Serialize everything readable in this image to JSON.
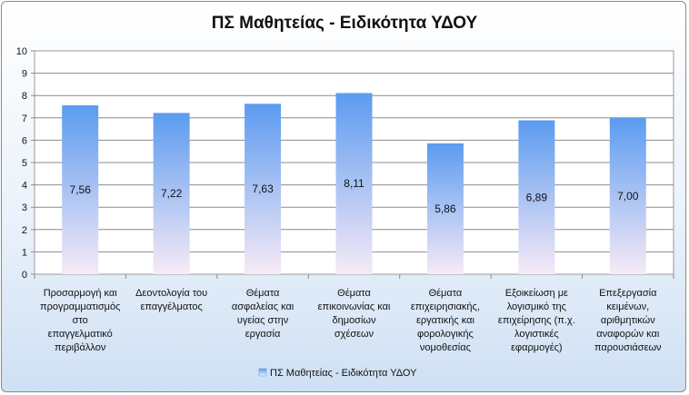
{
  "chart_data": {
    "type": "bar",
    "title": "ΠΣ Μαθητείας - Ειδικότητα ΥΔΟΥ",
    "categories": [
      [
        "Προσαρμογή και",
        "προγραμματισμός",
        "στο",
        "επαγγελματικό",
        "περιβάλλον"
      ],
      [
        "Δεοντολογία του",
        "επαγγέλματος"
      ],
      [
        "Θέματα",
        "ασφαλείας και",
        "υγείας στην",
        "εργασία"
      ],
      [
        "Θέματα",
        "επικοινωνίας και",
        "δημοσίων",
        "σχέσεων"
      ],
      [
        "Θέματα",
        "επιχειρησιακής,",
        "εργατικής και",
        "φορολογικής",
        "νομοθεσίας"
      ],
      [
        "Εξοικείωση με",
        "λογισμικό της",
        "επιχείρησης (π.χ.",
        "λογιστικές",
        "εφαρμογές)"
      ],
      [
        "Επεξεργασία",
        "κειμένων,",
        "αριθμητικών",
        "αναφορών και",
        "παρουσιάσεων"
      ]
    ],
    "series": [
      {
        "name": "ΠΣ Μαθητείας  - Ειδικότητα ΥΔΟΥ",
        "values": [
          7.56,
          7.22,
          7.63,
          8.11,
          5.86,
          6.89,
          7.0
        ],
        "labels": [
          "7,56",
          "7,22",
          "7,63",
          "8,11",
          "5,86",
          "6,89",
          "7,00"
        ]
      }
    ],
    "y_ticks": [
      "0",
      "1",
      "2",
      "3",
      "4",
      "5",
      "6",
      "7",
      "8",
      "9",
      "10"
    ],
    "ylim": [
      0,
      10
    ],
    "grid": true,
    "legend": "bottom",
    "colors": {
      "bar_top": "#5b9bf0",
      "bar_bottom": "#f7eaf6",
      "plot_bg": "#ffffff"
    }
  }
}
